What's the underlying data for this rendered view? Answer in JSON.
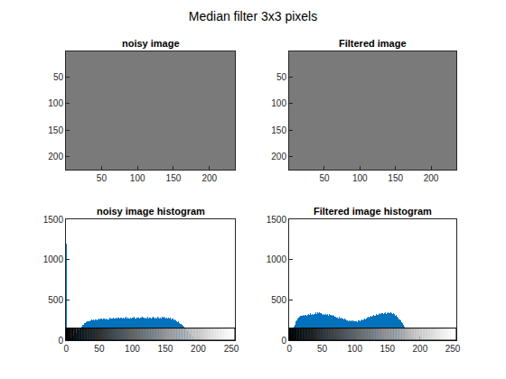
{
  "title": "Median filter 3x3 pixels",
  "chart_data": [
    {
      "type": "image",
      "title": "noisy image",
      "xlim": [
        0.5,
        235.5
      ],
      "ylim": [
        225.5,
        0.5
      ],
      "xticks": [
        50,
        100,
        150,
        200
      ],
      "yticks": [
        50,
        100,
        150,
        200
      ]
    },
    {
      "type": "image",
      "title": "Filtered image",
      "xlim": [
        0.5,
        235.5
      ],
      "ylim": [
        225.5,
        0.5
      ],
      "xticks": [
        50,
        100,
        150,
        200
      ],
      "yticks": [
        50,
        100,
        150,
        200
      ]
    },
    {
      "type": "bar",
      "title": "noisy image histogram",
      "color": "#0072bd",
      "xlim": [
        -0.5,
        255.5
      ],
      "ylim": [
        0,
        1500
      ],
      "xticks": [
        0,
        50,
        100,
        150,
        200,
        250
      ],
      "yticks": [
        0,
        500,
        1000,
        1500
      ],
      "x": [
        0,
        1,
        2,
        3,
        4,
        5,
        6,
        7,
        8,
        9,
        10,
        11,
        12,
        13,
        14,
        15,
        16,
        17,
        18,
        19,
        20,
        21,
        22,
        23,
        24,
        25,
        26,
        27,
        28,
        29,
        30,
        31,
        32,
        33,
        34,
        35,
        36,
        37,
        38,
        39,
        40,
        41,
        42,
        43,
        44,
        45,
        46,
        47,
        48,
        49,
        50,
        51,
        52,
        53,
        54,
        55,
        56,
        57,
        58,
        59,
        60,
        61,
        62,
        63,
        64,
        65,
        66,
        67,
        68,
        69,
        70,
        71,
        72,
        73,
        74,
        75,
        76,
        77,
        78,
        79,
        80,
        81,
        82,
        83,
        84,
        85,
        86,
        87,
        88,
        89,
        90,
        91,
        92,
        93,
        94,
        95,
        96,
        97,
        98,
        99,
        100,
        101,
        102,
        103,
        104,
        105,
        106,
        107,
        108,
        109,
        110,
        111,
        112,
        113,
        114,
        115,
        116,
        117,
        118,
        119,
        120,
        121,
        122,
        123,
        124,
        125,
        126,
        127,
        128,
        129,
        130,
        131,
        132,
        133,
        134,
        135,
        136,
        137,
        138,
        139,
        140,
        141,
        142,
        143,
        144,
        145,
        146,
        147,
        148,
        149,
        150,
        151,
        152,
        153,
        154,
        155,
        156,
        157,
        158,
        159,
        160,
        161,
        162,
        163,
        164,
        165,
        166,
        167,
        168,
        169,
        170,
        171,
        172,
        173,
        174,
        175,
        176,
        177,
        178,
        179,
        180,
        181,
        182,
        183,
        184,
        185,
        186,
        187,
        188,
        189,
        190,
        191,
        192,
        193,
        194,
        195,
        196,
        197,
        198,
        199,
        200,
        201,
        202,
        203,
        204,
        205,
        206,
        207,
        208,
        209,
        210,
        211,
        212,
        213,
        214,
        215,
        216,
        217,
        218,
        219,
        220,
        221,
        222,
        223,
        224,
        225,
        226,
        227,
        228,
        229,
        230,
        231,
        232,
        233,
        234,
        235,
        236,
        237,
        238,
        239,
        240,
        241,
        242,
        243,
        244,
        245,
        246,
        247,
        248,
        249,
        250,
        251,
        252,
        253,
        254,
        255
      ],
      "values": [
        1200,
        5,
        8,
        10,
        14,
        18,
        22,
        27,
        33,
        38,
        45,
        52,
        60,
        68,
        77,
        86,
        95,
        105,
        115,
        125,
        135,
        145,
        155,
        165,
        175,
        185,
        192,
        200,
        208,
        215,
        220,
        226,
        231,
        236,
        240,
        245,
        238,
        250,
        247,
        255,
        249,
        258,
        252,
        246,
        260,
        255,
        263,
        250,
        258,
        266,
        254,
        262,
        270,
        259,
        265,
        257,
        268,
        261,
        272,
        258,
        266,
        274,
        263,
        257,
        270,
        262,
        276,
        265,
        258,
        271,
        267,
        280,
        262,
        274,
        269,
        278,
        260,
        272,
        283,
        266,
        275,
        268,
        281,
        263,
        277,
        270,
        285,
        272,
        266,
        279,
        273,
        286,
        269,
        276,
        282,
        271,
        264,
        278,
        284,
        270,
        275,
        281,
        268,
        287,
        273,
        279,
        266,
        283,
        276,
        270,
        285,
        274,
        280,
        267,
        277,
        288,
        272,
        281,
        275,
        269,
        284,
        278,
        271,
        286,
        279,
        273,
        282,
        276,
        287,
        270,
        281,
        275,
        289,
        278,
        272,
        284,
        280,
        274,
        291,
        277,
        283,
        270,
        286,
        279,
        273,
        288,
        281,
        276,
        290,
        279,
        285,
        272,
        283,
        277,
        270,
        282,
        274,
        266,
        278,
        262,
        270,
        258,
        265,
        250,
        257,
        244,
        250,
        236,
        240,
        226,
        230,
        214,
        218,
        202,
        204,
        190,
        186,
        174,
        170,
        158,
        152,
        140,
        134,
        122,
        116,
        104,
        98,
        88,
        80,
        72,
        64,
        56,
        50,
        44,
        38,
        33,
        28,
        24,
        20,
        17,
        14,
        12,
        10,
        8,
        7,
        6,
        5,
        4,
        4,
        3,
        3,
        2,
        2,
        2,
        1,
        1,
        1,
        1,
        1,
        0,
        0,
        0,
        0,
        0,
        0,
        0,
        0,
        0,
        0,
        0,
        0,
        0,
        0,
        0,
        0,
        0,
        0,
        0,
        0,
        0,
        0,
        0,
        0,
        0,
        0,
        0,
        0,
        0,
        0,
        0,
        0,
        0,
        0,
        0,
        0,
        150
      ]
    },
    {
      "type": "bar",
      "title": "Filtered image histogram",
      "color": "#0072bd",
      "xlim": [
        -0.5,
        255.5
      ],
      "ylim": [
        0,
        1500
      ],
      "xticks": [
        0,
        50,
        100,
        150,
        200,
        250
      ],
      "yticks": [
        0,
        500,
        1000,
        1500
      ],
      "x": [
        0,
        1,
        2,
        3,
        4,
        5,
        6,
        7,
        8,
        9,
        10,
        11,
        12,
        13,
        14,
        15,
        16,
        17,
        18,
        19,
        20,
        21,
        22,
        23,
        24,
        25,
        26,
        27,
        28,
        29,
        30,
        31,
        32,
        33,
        34,
        35,
        36,
        37,
        38,
        39,
        40,
        41,
        42,
        43,
        44,
        45,
        46,
        47,
        48,
        49,
        50,
        51,
        52,
        53,
        54,
        55,
        56,
        57,
        58,
        59,
        60,
        61,
        62,
        63,
        64,
        65,
        66,
        67,
        68,
        69,
        70,
        71,
        72,
        73,
        74,
        75,
        76,
        77,
        78,
        79,
        80,
        81,
        82,
        83,
        84,
        85,
        86,
        87,
        88,
        89,
        90,
        91,
        92,
        93,
        94,
        95,
        96,
        97,
        98,
        99,
        100,
        101,
        102,
        103,
        104,
        105,
        106,
        107,
        108,
        109,
        110,
        111,
        112,
        113,
        114,
        115,
        116,
        117,
        118,
        119,
        120,
        121,
        122,
        123,
        124,
        125,
        126,
        127,
        128,
        129,
        130,
        131,
        132,
        133,
        134,
        135,
        136,
        137,
        138,
        139,
        140,
        141,
        142,
        143,
        144,
        145,
        146,
        147,
        148,
        149,
        150,
        151,
        152,
        153,
        154,
        155,
        156,
        157,
        158,
        159,
        160,
        161,
        162,
        163,
        164,
        165,
        166,
        167,
        168,
        169,
        170,
        171,
        172,
        173,
        174,
        175,
        176,
        177,
        178,
        179,
        180,
        181,
        182,
        183,
        184,
        185,
        186,
        187,
        188,
        189,
        190,
        191,
        192,
        193,
        194,
        195,
        196,
        197,
        198,
        199,
        200,
        201,
        202,
        203,
        204,
        205,
        206,
        207,
        208,
        209,
        210,
        211,
        212,
        213,
        214,
        215,
        216,
        217,
        218,
        219,
        220,
        221,
        222,
        223,
        224,
        225,
        226,
        227,
        228,
        229,
        230,
        231,
        232,
        233,
        234,
        235,
        236,
        237,
        238,
        239,
        240,
        241,
        242,
        243,
        244,
        245,
        246,
        247,
        248,
        249,
        250,
        251,
        252,
        253,
        254,
        255
      ],
      "values": [
        40,
        55,
        70,
        90,
        110,
        130,
        150,
        170,
        190,
        210,
        230,
        245,
        260,
        272,
        282,
        290,
        296,
        302,
        298,
        310,
        305,
        316,
        300,
        322,
        312,
        318,
        306,
        326,
        314,
        330,
        320,
        309,
        332,
        318,
        340,
        326,
        312,
        344,
        330,
        321,
        348,
        335,
        326,
        352,
        338,
        329,
        345,
        333,
        320,
        341,
        330,
        316,
        337,
        325,
        312,
        334,
        321,
        308,
        330,
        316,
        303,
        324,
        311,
        298,
        318,
        305,
        292,
        312,
        299,
        286,
        305,
        292,
        280,
        298,
        285,
        272,
        290,
        278,
        266,
        282,
        270,
        258,
        274,
        262,
        250,
        266,
        255,
        244,
        260,
        248,
        238,
        254,
        243,
        233,
        248,
        238,
        230,
        245,
        235,
        226,
        240,
        231,
        222,
        238,
        229,
        241,
        233,
        246,
        238,
        251,
        243,
        256,
        248,
        262,
        254,
        268,
        260,
        274,
        266,
        280,
        272,
        286,
        278,
        292,
        284,
        298,
        290,
        304,
        296,
        310,
        302,
        316,
        306,
        320,
        311,
        324,
        315,
        328,
        318,
        332,
        321,
        335,
        324,
        338,
        326,
        340,
        328,
        343,
        330,
        345,
        332,
        347,
        334,
        350,
        336,
        345,
        330,
        340,
        322,
        332,
        314,
        322,
        304,
        310,
        292,
        296,
        278,
        280,
        262,
        262,
        244,
        240,
        222,
        216,
        198,
        190,
        172,
        162,
        146,
        134,
        120,
        106,
        94,
        82,
        70,
        58,
        48,
        38,
        30,
        22,
        16,
        11,
        7,
        5,
        3,
        2,
        1,
        1,
        0,
        0,
        0,
        0,
        0,
        0,
        0,
        0,
        0,
        0,
        0,
        0,
        0,
        0,
        0,
        0,
        0,
        0,
        0,
        0,
        0,
        0,
        0,
        0,
        0,
        0,
        0,
        0,
        0,
        0,
        0,
        0,
        0,
        0,
        0,
        0,
        0,
        0,
        0,
        0,
        0,
        0,
        0,
        0,
        0,
        0,
        0,
        0,
        0,
        0,
        0,
        0,
        0,
        0,
        0,
        0,
        0,
        0
      ]
    }
  ]
}
